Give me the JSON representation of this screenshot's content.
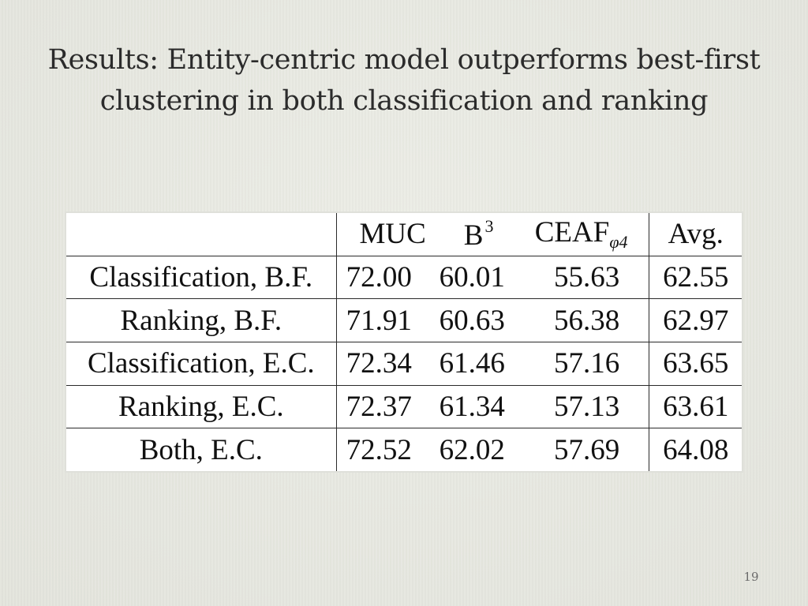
{
  "slide": {
    "title_line1": "Results: Entity-centric model outperforms best-first",
    "title_line2": "clustering in both classification and ranking",
    "page_number": "19"
  },
  "table": {
    "headers": {
      "label": "",
      "muc": "MUC",
      "b3_base": "B",
      "b3_sup": "3",
      "ceaf_base": "CEAF",
      "ceaf_sub": "φ4",
      "avg": "Avg."
    },
    "rows": [
      {
        "label": "Classification, B.F.",
        "muc": "72.00",
        "b3": "60.01",
        "ceaf": "55.63",
        "avg": "62.55"
      },
      {
        "label": "Ranking, B.F.",
        "muc": "71.91",
        "b3": "60.63",
        "ceaf": "56.38",
        "avg": "62.97"
      },
      {
        "label": "Classification, E.C.",
        "muc": "72.34",
        "b3": "61.46",
        "ceaf": "57.16",
        "avg": "63.65"
      },
      {
        "label": "Ranking, E.C.",
        "muc": "72.37",
        "b3": "61.34",
        "ceaf": "57.13",
        "avg": "63.61"
      },
      {
        "label": "Both, E.C.",
        "muc": "72.52",
        "b3": "62.02",
        "ceaf": "57.69",
        "avg": "64.08"
      }
    ]
  }
}
